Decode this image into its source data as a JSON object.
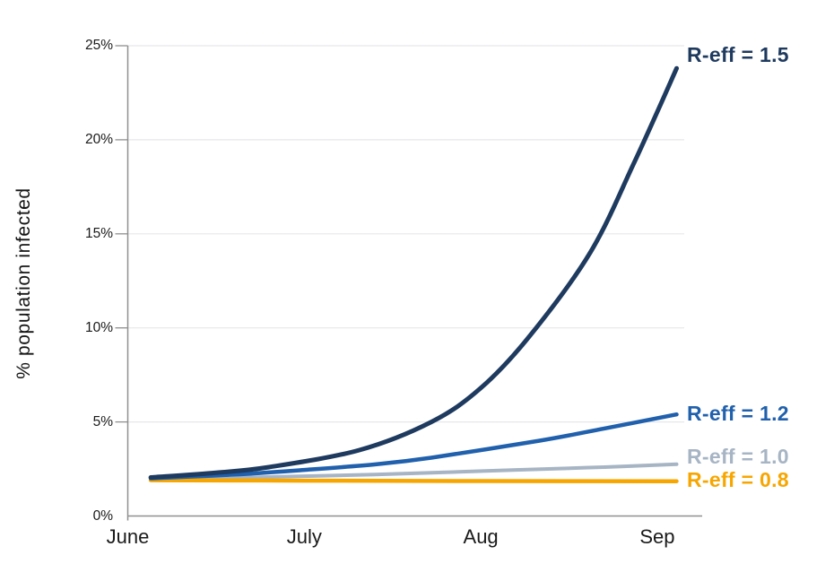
{
  "chart_data": {
    "type": "line",
    "title": "",
    "xlabel": "",
    "ylabel": "% population infected",
    "x_ticks": [
      "June",
      "July",
      "Aug",
      "Sep"
    ],
    "y_ticks": [
      "0%",
      "5%",
      "10%",
      "15%",
      "20%",
      "25%"
    ],
    "xlim_months": [
      0,
      3.15
    ],
    "ylim": [
      0,
      25
    ],
    "grid": "horizontal gridlines every 5%, very light gray",
    "legend_position": "direct labels at right end of each line",
    "axis_color": "#8f8f8f",
    "grid_color": "#e7e7ea",
    "tick_text_color": "#1a1a1a",
    "series": [
      {
        "name": "R-eff = 1.5",
        "color": "#1E3A5F",
        "label_pct": 24.5,
        "points": [
          [
            0.13,
            2.05
          ],
          [
            0.5,
            2.3
          ],
          [
            0.8,
            2.6
          ],
          [
            1.31,
            3.5
          ],
          [
            1.72,
            5.0
          ],
          [
            2.0,
            6.8
          ],
          [
            2.28,
            9.6
          ],
          [
            2.62,
            14.0
          ],
          [
            2.87,
            18.8
          ],
          [
            3.11,
            23.8
          ]
        ]
      },
      {
        "name": "R-eff = 1.2",
        "color": "#2060AC",
        "label_pct": 5.45,
        "points": [
          [
            0.13,
            2.0
          ],
          [
            0.6,
            2.2
          ],
          [
            1.0,
            2.45
          ],
          [
            1.41,
            2.75
          ],
          [
            1.72,
            3.1
          ],
          [
            2.33,
            4.0
          ],
          [
            2.7,
            4.65
          ],
          [
            3.11,
            5.4
          ]
        ]
      },
      {
        "name": "R-eff = 1.0",
        "color": "#A6B4C4",
        "label_pct": 3.17,
        "points": [
          [
            0.13,
            1.95
          ],
          [
            0.7,
            2.05
          ],
          [
            1.4,
            2.2
          ],
          [
            2.2,
            2.45
          ],
          [
            2.7,
            2.6
          ],
          [
            3.11,
            2.75
          ]
        ]
      },
      {
        "name": "R-eff = 0.8",
        "color": "#F7A600",
        "label_pct": 1.93,
        "points": [
          [
            0.13,
            1.9
          ],
          [
            1.0,
            1.88
          ],
          [
            2.0,
            1.86
          ],
          [
            3.11,
            1.85
          ]
        ]
      }
    ]
  }
}
